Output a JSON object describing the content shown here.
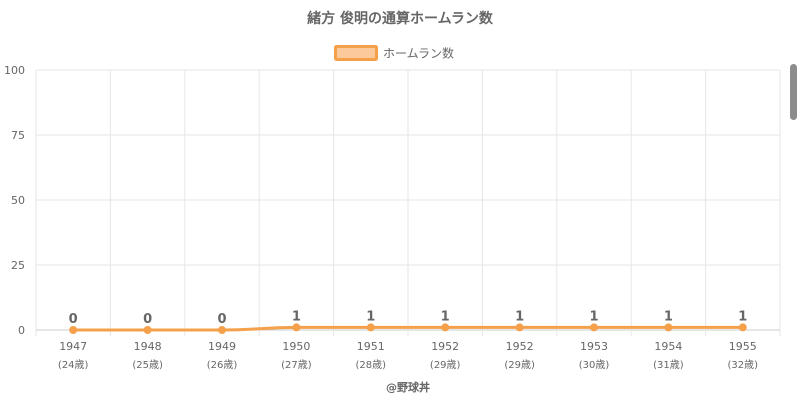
{
  "chart_data": {
    "type": "line",
    "title": "緒方 俊明の通算ホームラン数",
    "categories": [
      "1947",
      "1948",
      "1949",
      "1950",
      "1951",
      "1952",
      "1952",
      "1953",
      "1954",
      "1955"
    ],
    "category_sublabels": [
      "(24歳)",
      "(25歳)",
      "(26歳)",
      "(27歳)",
      "(28歳)",
      "(29歳)",
      "(29歳)",
      "(30歳)",
      "(31歳)",
      "(32歳)"
    ],
    "series": [
      {
        "name": "ホームラン数",
        "values": [
          0,
          0,
          0,
          1,
          1,
          1,
          1,
          1,
          1,
          1
        ],
        "data_labels": [
          "0",
          "0",
          "0",
          "1",
          "1",
          "1",
          "1",
          "1",
          "1",
          "1"
        ]
      }
    ],
    "ylim": [
      0,
      100
    ],
    "yticks": [
      0,
      25,
      50,
      75,
      100
    ],
    "ytick_labels": [
      "0",
      "25",
      "50",
      "75",
      "100"
    ],
    "grid": true,
    "legend_position": "top-center",
    "colors": {
      "line": "#f5a04a",
      "point": "#f5a04a",
      "legend_fill": "#fbc99a",
      "grid": "#e6e6e6",
      "axis": "#cccccc",
      "text": "#666666"
    },
    "credit": "@野球丼"
  }
}
